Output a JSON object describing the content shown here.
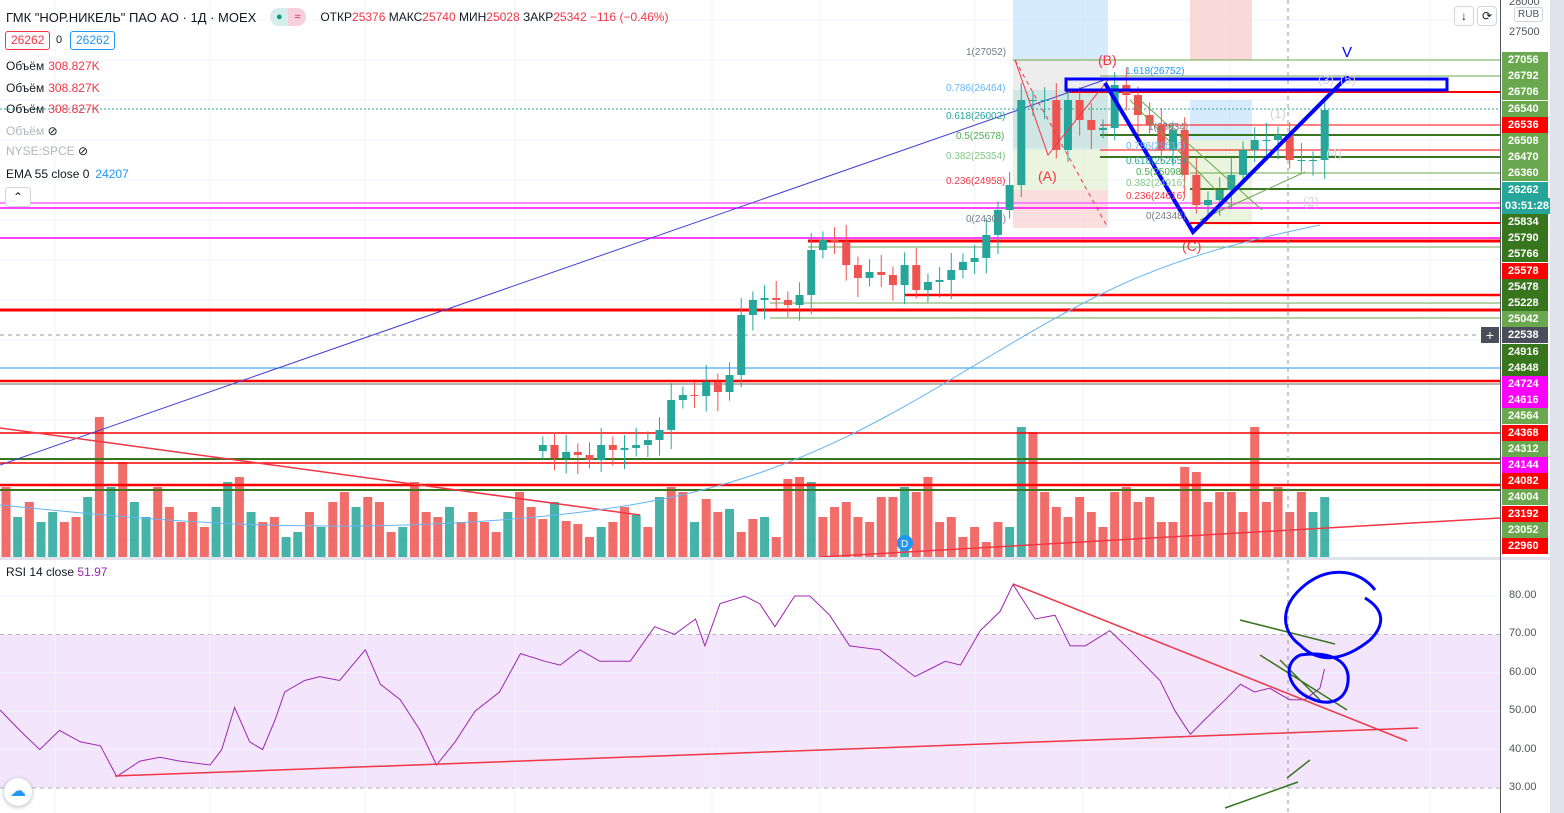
{
  "header": {
    "symbol": "ГМК \"НОР.НИКЕЛЬ\" ПАО АО · 1Д · MOEX",
    "open_label": "ОТКР",
    "open": "25376",
    "high_label": "МАКС",
    "high": "25740",
    "low_label": "МИН",
    "low": "25028",
    "close_label": "ЗАКР",
    "close": "25342",
    "change": "−116 (−0.46%)",
    "status_icons": [
      "market-open-dot",
      "delayed-icon"
    ]
  },
  "price_boxes": {
    "sell": "26262",
    "spread": "0",
    "buy": "26262"
  },
  "legend": [
    {
      "name": "Объём",
      "value": "308.827K"
    },
    {
      "name": "Объём",
      "value": "308.827K"
    },
    {
      "name": "Объём",
      "value": "308.827K"
    },
    {
      "name": "Объём",
      "value": "hidden"
    },
    {
      "name": "NYSE:SPCE",
      "value": "hidden"
    },
    {
      "name": "EMA 55 close 0",
      "value": "24207"
    }
  ],
  "currency": "RUB",
  "axis_top_ticks": [
    "28000",
    "27500"
  ],
  "price_labels": [
    {
      "text": "27056",
      "color": "#6aa84f"
    },
    {
      "text": "26792",
      "color": "#6aa84f"
    },
    {
      "text": "26706",
      "color": "#6aa84f"
    },
    {
      "text": "26540",
      "color": "#6aa84f"
    },
    {
      "text": "26536",
      "color": "#ff0000"
    },
    {
      "text": "26508",
      "color": "#6aa84f"
    },
    {
      "text": "26470",
      "color": "#6aa84f"
    },
    {
      "text": "26360",
      "color": "#6aa84f"
    },
    {
      "text": "26262",
      "color": "#26a69a"
    },
    {
      "text": "03:51:28",
      "color": "#26a69a"
    },
    {
      "text": "25834",
      "color": "#38761d"
    },
    {
      "text": "25790",
      "color": "#38761d"
    },
    {
      "text": "25766",
      "color": "#38761d"
    },
    {
      "text": "25578",
      "color": "#ff0000"
    },
    {
      "text": "25478",
      "color": "#38761d"
    },
    {
      "text": "25228",
      "color": "#38761d"
    },
    {
      "text": "25042",
      "color": "#6aa84f"
    },
    {
      "text": "22538",
      "color": "#4a4e5a"
    },
    {
      "text": "24916",
      "color": "#38761d"
    },
    {
      "text": "24848",
      "color": "#38761d"
    },
    {
      "text": "24724",
      "color": "#ff00ff"
    },
    {
      "text": "24616",
      "color": "#ff00ff"
    },
    {
      "text": "24564",
      "color": "#6aa84f"
    },
    {
      "text": "24368",
      "color": "#ff0000"
    },
    {
      "text": "24312",
      "color": "#6aa84f"
    },
    {
      "text": "24144",
      "color": "#ff00ff"
    },
    {
      "text": "24082",
      "color": "#ff0000"
    },
    {
      "text": "24004",
      "color": "#6aa84f"
    },
    {
      "text": "23192",
      "color": "#ff0000"
    },
    {
      "text": "23052",
      "color": "#6aa84f"
    },
    {
      "text": "22960",
      "color": "#ff0000"
    }
  ],
  "fib_labels": [
    "1(27052)",
    "0.786(26464)",
    "0.618(26002)",
    "0.5(25678)",
    "0.382(25354)",
    "0.236(24958)",
    "0(24302)",
    "1.618(26752)",
    "1(25834)",
    "0.786(25516)",
    "0.618(25265)",
    "0.5(25098)",
    "0.382(24916)",
    "0.236(24616)",
    "0(24348)"
  ],
  "wave_labels": [
    "(B)",
    "(A)",
    "(C)",
    "V",
    "(1)",
    "(2)",
    "(3)",
    "(4)",
    "(5)"
  ],
  "event_marker": "D",
  "rsi": {
    "label": "RSI 14 close",
    "value": "51.97",
    "ticks": [
      "80.00",
      "70.00",
      "60.00",
      "50.00",
      "40.00",
      "30.00"
    ]
  },
  "colors": {
    "up": "#26a69a",
    "down": "#f23645",
    "rsi": "#9c27b0",
    "rsi_band": "#f3e5fc"
  },
  "chart_data": {
    "type": "candlestick",
    "candle_start_bar": 46,
    "first_open": 24300,
    "closes": [
      24343,
      24251,
      24294,
      24272,
      24237,
      24343,
      24308,
      24322,
      24343,
      24378,
      24449,
      24660,
      24695,
      24688,
      24787,
      24716,
      24836,
      25259,
      25365,
      25379,
      25365,
      25329,
      25400,
      25717,
      25788,
      25774,
      25611,
      25520,
      25562,
      25541,
      25470,
      25611,
      25435,
      25492,
      25506,
      25576,
      25633,
      25661,
      25823,
      25999,
      26175,
      26774,
      26774,
      26774,
      26422,
      26774,
      26633,
      26563,
      26577,
      26880,
      26809,
      26668,
      26598,
      26422,
      26563,
      26246,
      26034,
      26069,
      26140,
      26246,
      26422,
      26492,
      26492,
      26527,
      26351,
      26351,
      26351,
      26704
    ],
    "volume_rel": [
      -70,
      40,
      -55,
      35,
      45,
      -35,
      -40,
      60,
      -140,
      70,
      -95,
      55,
      40,
      -70,
      -50,
      -35,
      -45,
      -30,
      50,
      75,
      -80,
      45,
      -35,
      -40,
      20,
      25,
      -45,
      30,
      -55,
      -65,
      50,
      -60,
      -55,
      -25,
      30,
      -75,
      -45,
      -40,
      50,
      -35,
      -45,
      -35,
      -25,
      45,
      -65,
      -50,
      -38,
      55,
      -36,
      -33,
      -20,
      30,
      -35,
      -50,
      42,
      -30,
      60,
      -70,
      -65,
      35,
      -58,
      -45,
      48,
      -25,
      -38,
      40,
      -20,
      -78,
      -80,
      75,
      -40,
      -50,
      -55,
      -40,
      -35,
      -60,
      -60,
      70,
      -65,
      -80,
      -35,
      -40,
      -20,
      -30,
      -15,
      -35,
      30,
      130,
      -125,
      -65,
      -50,
      -40,
      -60,
      -45,
      -30,
      -65,
      -70,
      -55,
      -60,
      -35,
      -35,
      -90,
      -85,
      -55,
      -65,
      -65,
      -45,
      -130,
      -55,
      -70,
      -45,
      -65,
      45,
      60
    ],
    "rsi_series": [
      [
        0,
        50.3
      ],
      [
        1.7,
        45
      ],
      [
        3.4,
        40
      ],
      [
        5.1,
        45
      ],
      [
        6.9,
        42
      ],
      [
        8.6,
        41
      ],
      [
        10,
        33
      ],
      [
        12,
        37
      ],
      [
        13.7,
        38
      ],
      [
        15.4,
        37
      ],
      [
        18,
        36
      ],
      [
        19,
        40
      ],
      [
        20.1,
        51
      ],
      [
        21.4,
        42
      ],
      [
        22.5,
        40
      ],
      [
        23.6,
        48
      ],
      [
        24.4,
        55
      ],
      [
        26.1,
        58
      ],
      [
        27.4,
        59
      ],
      [
        29.1,
        58
      ],
      [
        31.3,
        66
      ],
      [
        32.6,
        57
      ],
      [
        34.3,
        53
      ],
      [
        36,
        45
      ],
      [
        37.4,
        36
      ],
      [
        39,
        42
      ],
      [
        40.7,
        50
      ],
      [
        42.8,
        55
      ],
      [
        44.6,
        65
      ],
      [
        46.7,
        63
      ],
      [
        48,
        62
      ],
      [
        49.7,
        66
      ],
      [
        51.4,
        63
      ],
      [
        54,
        63
      ],
      [
        56.1,
        72
      ],
      [
        57.8,
        70
      ],
      [
        59.6,
        74
      ],
      [
        60.4,
        67
      ],
      [
        61.7,
        78
      ],
      [
        63.8,
        80
      ],
      [
        65.1,
        78
      ],
      [
        66.4,
        72
      ],
      [
        68.1,
        80
      ],
      [
        69.4,
        80
      ],
      [
        71.1,
        75
      ],
      [
        72.8,
        67
      ],
      [
        75.4,
        66
      ],
      [
        77.1,
        62
      ],
      [
        78.4,
        59
      ],
      [
        79.7,
        61
      ],
      [
        81,
        63
      ],
      [
        82.3,
        62
      ],
      [
        84,
        71
      ],
      [
        85.7,
        76
      ],
      [
        86.8,
        83
      ],
      [
        88.7,
        74
      ],
      [
        90.4,
        75
      ],
      [
        91.7,
        67
      ],
      [
        93,
        67
      ],
      [
        95.1,
        71
      ],
      [
        96.8,
        66
      ],
      [
        99.4,
        58
      ],
      [
        100.7,
        50
      ],
      [
        102,
        44
      ],
      [
        103.3,
        48
      ],
      [
        105,
        53
      ],
      [
        106.3,
        57
      ],
      [
        107.5,
        55
      ],
      [
        108.8,
        56
      ],
      [
        110.5,
        53
      ],
      [
        111.8,
        53
      ],
      [
        113.1,
        56
      ],
      [
        113.5,
        61
      ]
    ],
    "rsi_range": [
      25,
      90
    ],
    "rsi_band": [
      30,
      70
    ]
  }
}
